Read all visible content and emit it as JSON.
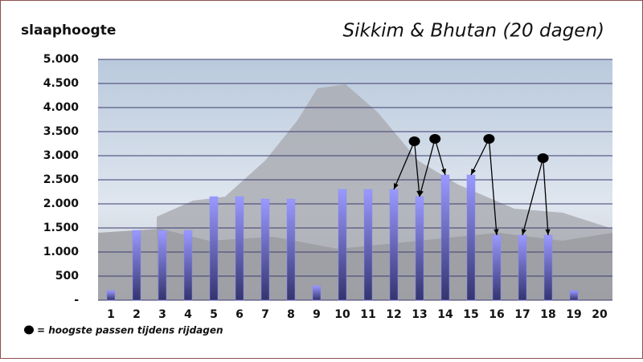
{
  "chart_data": {
    "type": "bar",
    "title": "Sikkim & Bhutan (20 dagen)",
    "y_label": "slaaphoogte",
    "categories": [
      "1",
      "2",
      "3",
      "4",
      "5",
      "6",
      "7",
      "8",
      "9",
      "10",
      "11",
      "12",
      "13",
      "14",
      "15",
      "16",
      "17",
      "18",
      "19",
      "20"
    ],
    "values": [
      200,
      1450,
      1450,
      1450,
      2150,
      2150,
      2100,
      2100,
      300,
      2300,
      2300,
      2300,
      2150,
      2600,
      2600,
      1350,
      1350,
      1350,
      200,
      0
    ],
    "color": "#8a8aff",
    "ylim": [
      0,
      5000
    ],
    "yticks": [
      {
        "value": 0,
        "label": "-"
      },
      {
        "value": 500,
        "label": "500"
      },
      {
        "value": 1000,
        "label": "1.000"
      },
      {
        "value": 1500,
        "label": "1.500"
      },
      {
        "value": 2000,
        "label": "2.000"
      },
      {
        "value": 2500,
        "label": "2.500"
      },
      {
        "value": 3000,
        "label": "3.000"
      },
      {
        "value": 3500,
        "label": "3.500"
      },
      {
        "value": 4000,
        "label": "4.000"
      },
      {
        "value": 4500,
        "label": "4.500"
      },
      {
        "value": 5000,
        "label": "5.000"
      }
    ],
    "grid": true,
    "passes": {
      "name": "= hoogste passen tijdens rijdagen",
      "color": "#000000",
      "x": [
        12.8,
        13.6,
        15.7,
        17.8
      ],
      "values": [
        3300,
        3350,
        3350,
        2950
      ]
    }
  }
}
